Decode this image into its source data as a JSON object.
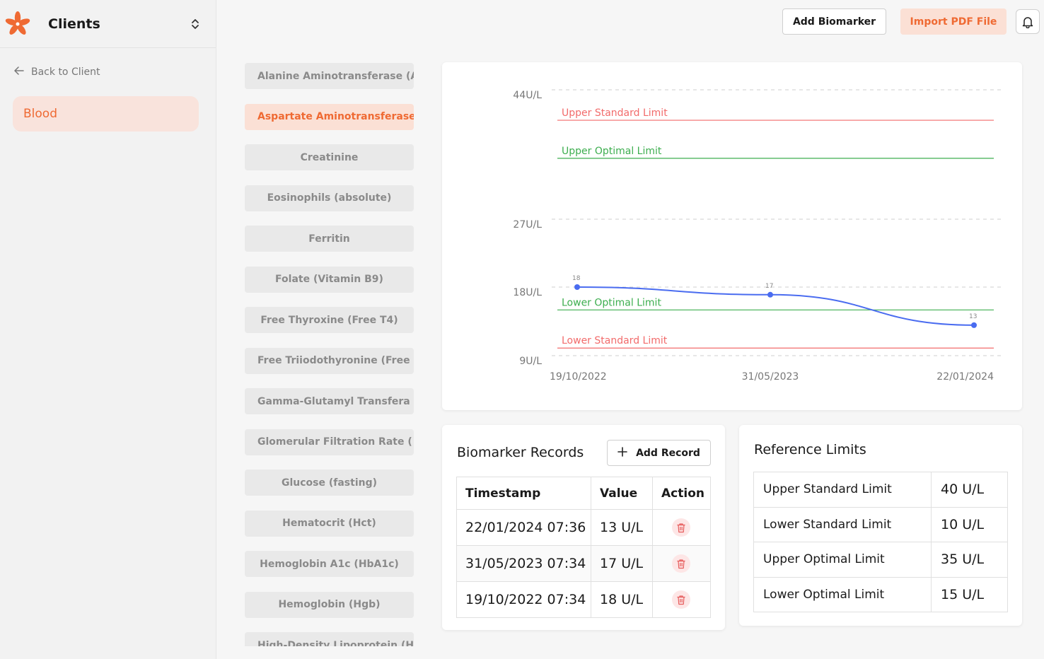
{
  "sidebar": {
    "title": "Clients",
    "back_label": "Back to Client",
    "active_item": "Blood"
  },
  "header": {
    "add_biomarker": "Add Biomarker",
    "import_pdf": "Import PDF File"
  },
  "biomarkers": [
    {
      "label": "Alanine Aminotransferase (A",
      "align": "left"
    },
    {
      "label": "Aspartate Aminotransferase",
      "align": "left",
      "active": true
    },
    {
      "label": "Creatinine",
      "align": "center"
    },
    {
      "label": "Eosinophils (absolute)",
      "align": "center"
    },
    {
      "label": "Ferritin",
      "align": "center"
    },
    {
      "label": "Folate (Vitamin B9)",
      "align": "center"
    },
    {
      "label": "Free Thyroxine (Free T4)",
      "align": "center"
    },
    {
      "label": "Free Triiodothyronine (Free",
      "align": "left"
    },
    {
      "label": "Gamma-Glutamyl Transfera",
      "align": "left"
    },
    {
      "label": "Glomerular Filtration Rate (",
      "align": "left"
    },
    {
      "label": "Glucose (fasting)",
      "align": "center"
    },
    {
      "label": "Hematocrit (Hct)",
      "align": "center"
    },
    {
      "label": "Hemoglobin A1c (HbA1c)",
      "align": "center"
    },
    {
      "label": "Hemoglobin (Hgb)",
      "align": "center"
    },
    {
      "label": "High-Density Lipoprotein (H",
      "align": "left"
    }
  ],
  "chart_data": {
    "type": "line",
    "x": [
      "19/10/2022",
      "31/05/2023",
      "22/01/2024"
    ],
    "series": [
      {
        "values": [
          18,
          17,
          13
        ]
      }
    ],
    "y_ticks": [
      "44U/L",
      "27U/L",
      "18U/L",
      "9U/L"
    ],
    "y_tick_values": [
      44,
      27,
      18,
      9
    ],
    "reference_lines": [
      {
        "label": "Upper Standard Limit",
        "value": 40,
        "color": "#f26b6b"
      },
      {
        "label": "Upper Optimal Limit",
        "value": 35,
        "color": "#3dae4f"
      },
      {
        "label": "Lower Optimal Limit",
        "value": 15,
        "color": "#3dae4f"
      },
      {
        "label": "Lower Standard Limit",
        "value": 10,
        "color": "#f26b6b"
      }
    ],
    "line_color": "#4a6cf0",
    "grid": true
  },
  "records": {
    "title": "Biomarker Records",
    "add_label": "Add Record",
    "columns": [
      "Timestamp",
      "Value",
      "Action"
    ],
    "rows": [
      {
        "timestamp": "22/01/2024 07:36",
        "value": "13 U/L"
      },
      {
        "timestamp": "31/05/2023 07:34",
        "value": "17 U/L"
      },
      {
        "timestamp": "19/10/2022 07:34",
        "value": "18 U/L"
      }
    ]
  },
  "limits": {
    "title": "Reference Limits",
    "rows": [
      {
        "label": "Upper Standard Limit",
        "value": "40 U/L"
      },
      {
        "label": "Lower Standard Limit",
        "value": "10 U/L"
      },
      {
        "label": "Upper Optimal Limit",
        "value": "35 U/L"
      },
      {
        "label": "Lower Optimal Limit",
        "value": "15 U/L"
      }
    ]
  },
  "colors": {
    "accent": "#ef6a33",
    "accent_soft": "#fbe0d5"
  }
}
